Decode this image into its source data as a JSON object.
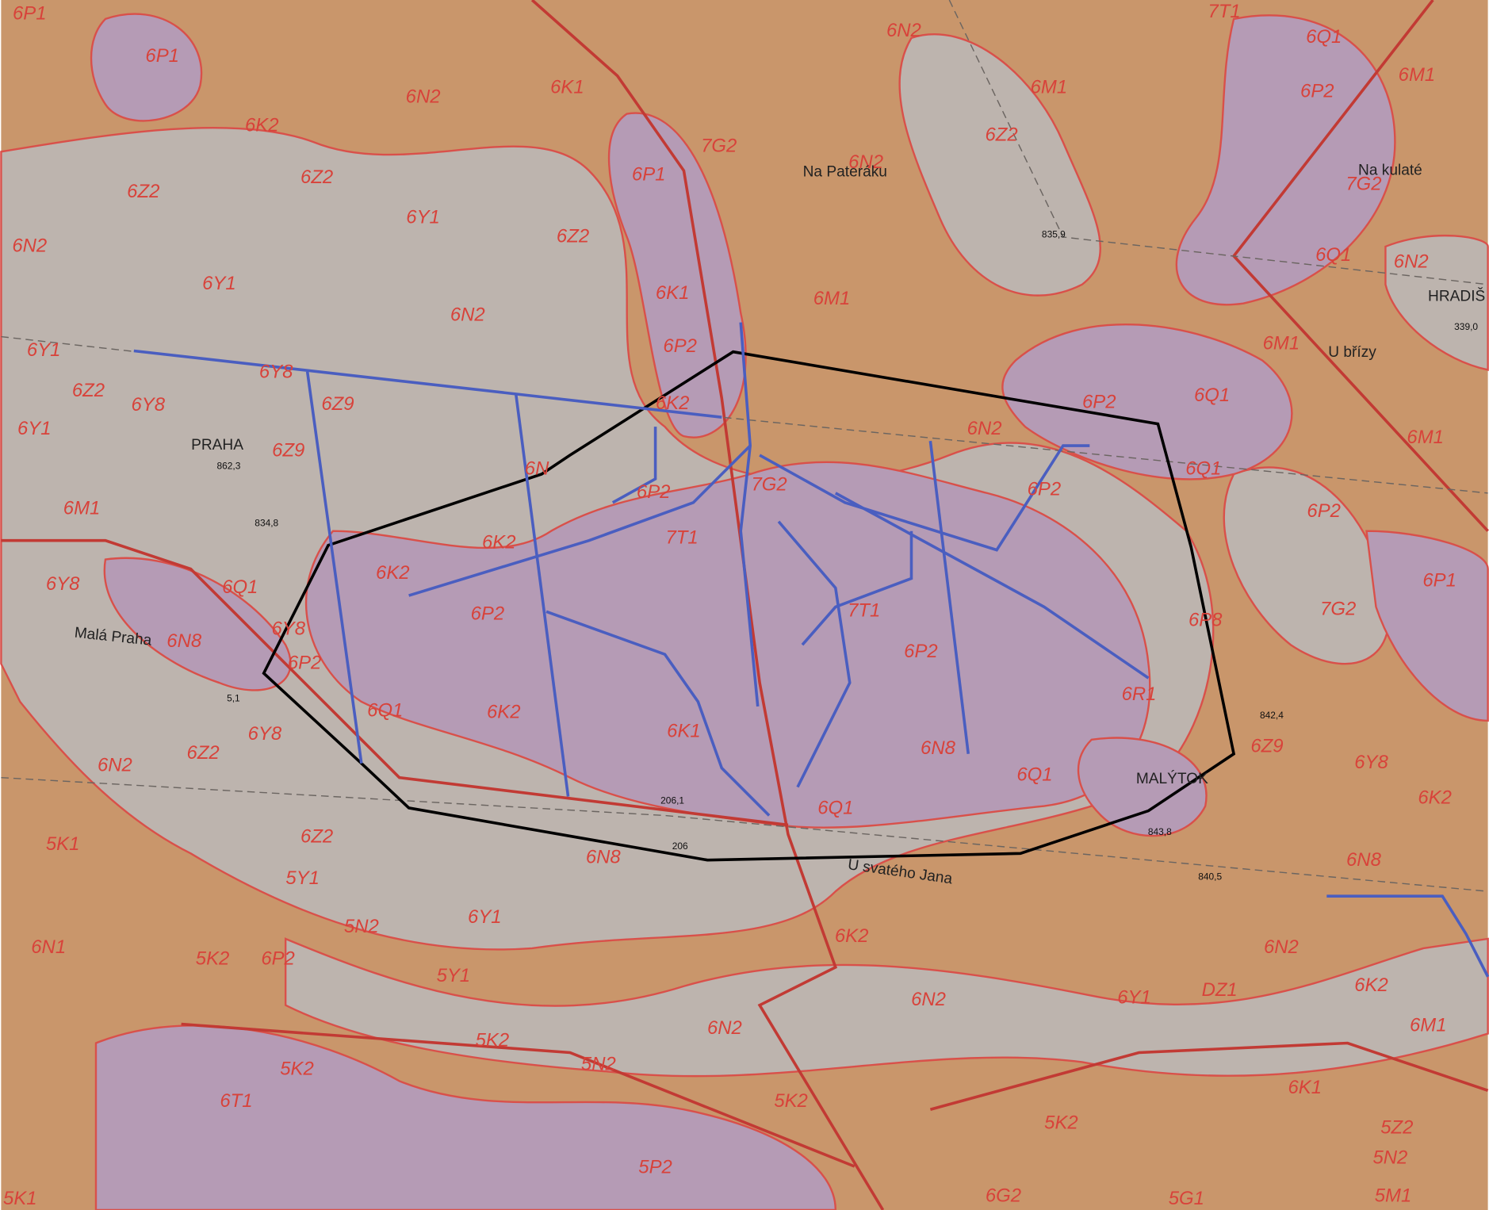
{
  "map": {
    "zone_labels": [
      "6P1",
      "6P1",
      "6N2",
      "6K1",
      "6K2",
      "7G2",
      "6P1",
      "6Z2",
      "6Z2",
      "6Y1",
      "6Z2",
      "6N2",
      "6Y1",
      "6N2",
      "6K1",
      "6P2",
      "6M1",
      "6Y1",
      "6Y8",
      "6Z9",
      "6K2",
      "6Z2",
      "6Y8",
      "6Y1",
      "6Z9",
      "6M1",
      "6P2",
      "7G2",
      "7T1",
      "6K2",
      "6K2",
      "6Q1",
      "6Y8",
      "6N8",
      "6Y8",
      "6P2",
      "6P2",
      "7T1",
      "6P2",
      "6Q1",
      "6K2",
      "6K1",
      "6Y8",
      "6Z2",
      "6N2",
      "6N8",
      "6Q1",
      "6Q1",
      "5K1",
      "6Z2",
      "6N8",
      "5Y1",
      "6Y1",
      "5N2",
      "6K2",
      "6N1",
      "5K2",
      "6P2",
      "5Y1",
      "6N2",
      "6N2",
      "5K2",
      "5N2",
      "5K2",
      "6T1",
      "5K2",
      "5K2",
      "5P2",
      "6G2",
      "5G1",
      "5K1",
      "6M1",
      "6Z2",
      "6N2",
      "6Q1",
      "6M1",
      "6P2",
      "7G2",
      "6Q1",
      "6N2",
      "6M1",
      "6Q1",
      "6P2",
      "6N2",
      "6M1",
      "6Q1",
      "6P2",
      "6P2",
      "6P1",
      "7G2",
      "6P8",
      "6R1",
      "6Z9",
      "6Y8",
      "6K2",
      "6N8",
      "6N2",
      "6K2",
      "6Y1",
      "DZ1",
      "6M1",
      "6K1",
      "5Z2",
      "5N2",
      "5M1",
      "6N",
      "6N2",
      "7T1"
    ],
    "place_names": [
      "Na Pateráku",
      "Na kulaté",
      "HRADIŠ",
      "U břízy",
      "PRAHA",
      "Malá Praha",
      "MALÝTOK",
      "U svatého Jana"
    ],
    "elevations": [
      "835,9",
      "339,0",
      "862,3",
      "834,8",
      "5,1",
      "842,4",
      "843,8",
      "206,1",
      "206",
      "840,5"
    ]
  }
}
